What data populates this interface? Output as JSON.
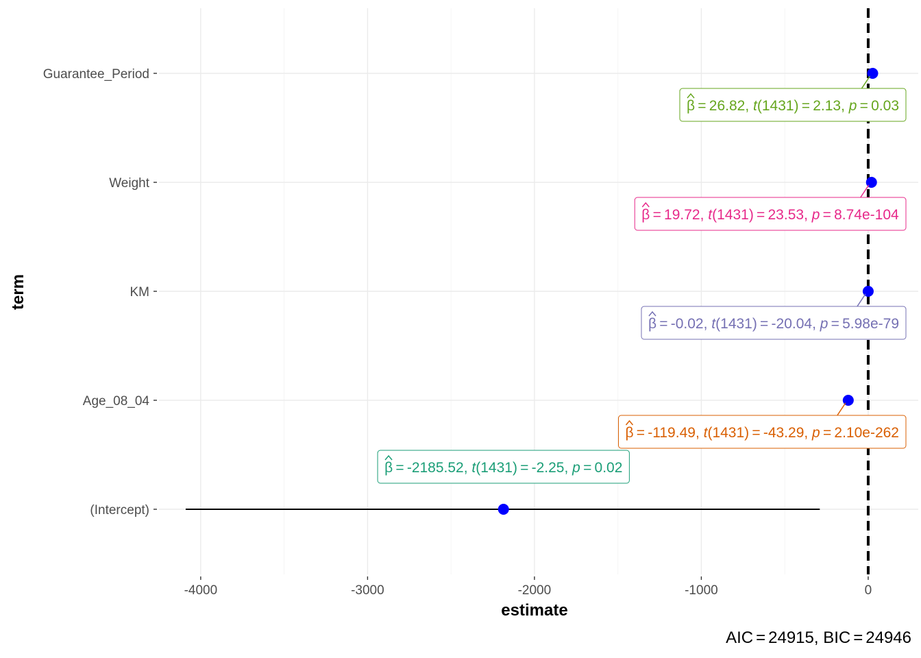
{
  "chart_data": {
    "type": "scatter",
    "xlabel": "estimate",
    "ylabel": "term",
    "xlim": [
      -4250,
      300
    ],
    "x_ticks": [
      -4000,
      -3000,
      -2000,
      -1000,
      0
    ],
    "x_tick_labels": [
      "-4000",
      "-3000",
      "-2000",
      "-1000",
      "0"
    ],
    "reference_line_x": 0,
    "grid": true,
    "terms": [
      {
        "term": "(Intercept)",
        "estimate": -2185.52,
        "conf_low": -4090,
        "conf_high": -290,
        "label_color": "#1b9e77",
        "label": {
          "beta": "-2185.52",
          "df": "1431",
          "t": "-2.25",
          "p": "0.02"
        }
      },
      {
        "term": "Age_08_04",
        "estimate": -119.49,
        "conf_low": -124.9,
        "conf_high": -114.1,
        "label_color": "#d95f02",
        "label": {
          "beta": "-119.49",
          "df": "1431",
          "t": "-43.29",
          "p": "2.10e-262"
        }
      },
      {
        "term": "KM",
        "estimate": -0.02,
        "conf_low": -0.022,
        "conf_high": -0.018,
        "label_color": "#7570b3",
        "label": {
          "beta": "-0.02",
          "df": "1431",
          "t": "-20.04",
          "p": "5.98e-79"
        }
      },
      {
        "term": "Weight",
        "estimate": 19.72,
        "conf_low": 18.08,
        "conf_high": 21.36,
        "label_color": "#e7298a",
        "label": {
          "beta": "19.72",
          "df": "1431",
          "t": "23.53",
          "p": "8.74e-104"
        }
      },
      {
        "term": "Guarantee_Period",
        "estimate": 26.82,
        "conf_low": 2.1,
        "conf_high": 51.5,
        "label_color": "#66a61e",
        "label": {
          "beta": "26.82",
          "df": "1431",
          "t": "2.13",
          "p": "0.03"
        }
      }
    ],
    "caption": {
      "aic": "24915",
      "bic": "24946"
    },
    "point_color": "#0000ff"
  }
}
